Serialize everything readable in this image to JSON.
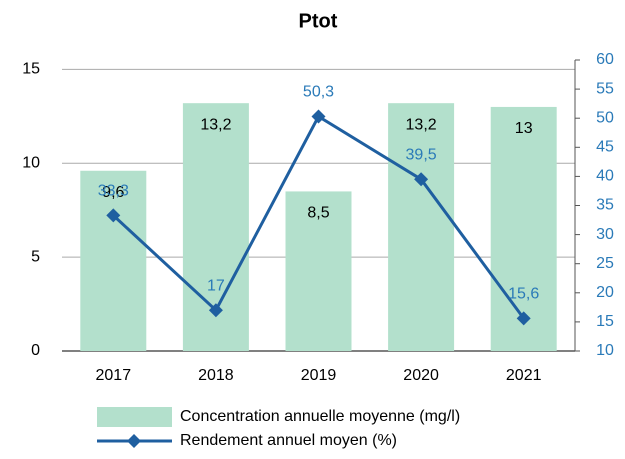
{
  "chart_data": {
    "type": "bar",
    "title": "Ptot",
    "categories": [
      "2017",
      "2018",
      "2019",
      "2020",
      "2021"
    ],
    "series": [
      {
        "name": "Concentration annuelle moyenne (mg/l)",
        "type": "bar",
        "color": "#b3e0cc",
        "axis": "y",
        "values": [
          9.6,
          13.2,
          8.5,
          13.2,
          13
        ],
        "value_labels": [
          "9,6",
          "13,2",
          "8,5",
          "13,2",
          "13"
        ]
      },
      {
        "name": "Rendement annuel moyen (%)",
        "type": "line",
        "color": "#1f5fa0",
        "axis": "y2",
        "values": [
          33.3,
          17,
          50.3,
          39.5,
          15.6
        ],
        "value_labels": [
          "33,3",
          "17",
          "50,3",
          "39,5",
          "15,6"
        ]
      }
    ],
    "ylim": [
      0,
      15.5
    ],
    "yticks": [
      0,
      5,
      10,
      15
    ],
    "y2lim": [
      10,
      60
    ],
    "y2ticks": [
      10,
      15,
      20,
      25,
      30,
      35,
      40,
      45,
      50,
      55,
      60
    ],
    "y2color": "#2a7ab8",
    "grid": true
  }
}
